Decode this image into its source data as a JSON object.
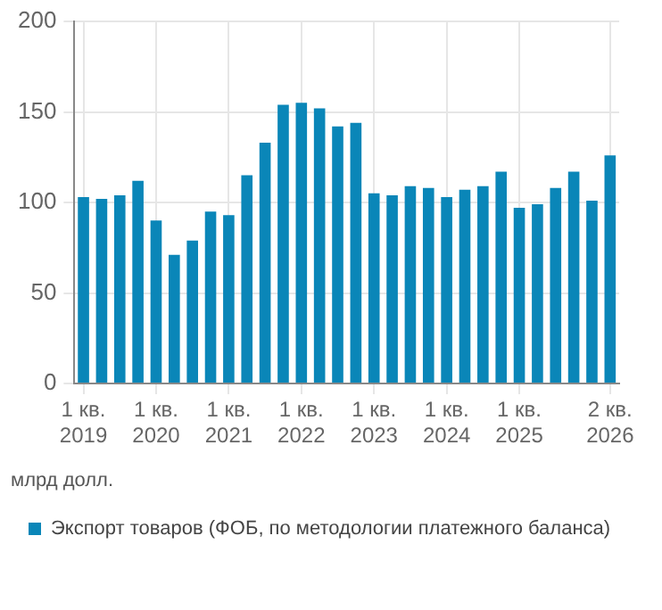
{
  "chart_data": {
    "type": "bar",
    "ylabel": "млрд долл.",
    "categories": [
      "1 кв.\n2019",
      null,
      null,
      null,
      "1 кв.\n2020",
      null,
      null,
      null,
      "1 кв.\n2021",
      null,
      null,
      null,
      "1 кв.\n2022",
      null,
      null,
      null,
      "1 кв.\n2023",
      null,
      null,
      null,
      "1 кв.\n2024",
      null,
      null,
      null,
      "1 кв.\n2025",
      null,
      null,
      null,
      null,
      "2 кв.\n2026"
    ],
    "series": [
      {
        "name": "Экспорт товаров (ФОБ, по методологии платежного баланса)",
        "color": "#0a86b8",
        "values": [
          103,
          102,
          104,
          112,
          90,
          71,
          79,
          95,
          93,
          115,
          133,
          154,
          155,
          152,
          142,
          144,
          105,
          104,
          109,
          108,
          103,
          107,
          109,
          117,
          97,
          99,
          108,
          117,
          101,
          126
        ]
      }
    ],
    "ylim": [
      0,
      200
    ],
    "yticks": [
      0,
      50,
      100,
      150,
      200
    ],
    "grid": true,
    "legend": "bottom"
  }
}
